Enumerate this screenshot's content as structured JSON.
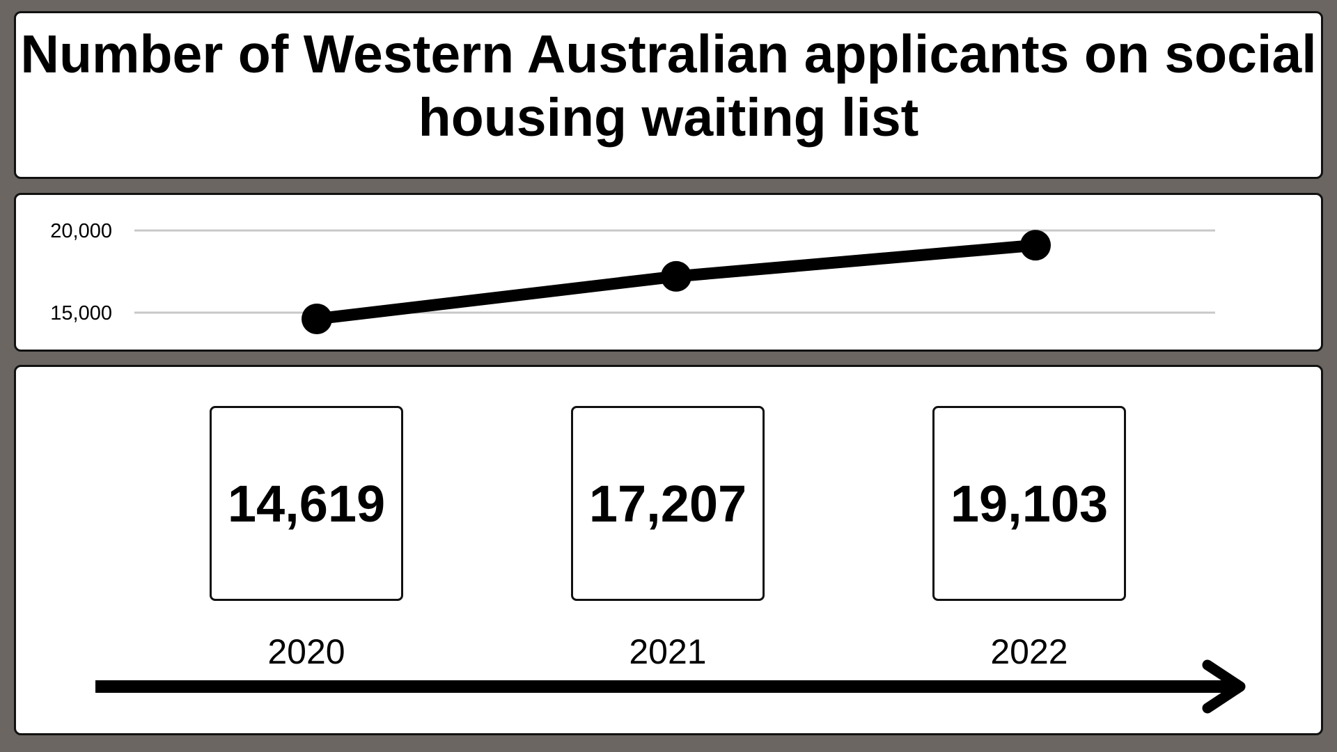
{
  "title": "Number of Western Australian applicants on social housing waiting list",
  "chart_data": {
    "type": "line",
    "title": "Number of Western Australian applicants on social housing waiting list",
    "x": [
      "2020",
      "2021",
      "2022"
    ],
    "values": [
      14619,
      17207,
      19103
    ],
    "value_labels": [
      "14,619",
      "17,207",
      "19,103"
    ],
    "yticks": [
      15000,
      20000
    ],
    "ytick_labels": [
      "15,000",
      "20,000"
    ],
    "ylim": [
      15000,
      20000
    ],
    "grid": true,
    "series_color": "#000000",
    "gridline_color": "#c8c8c8"
  },
  "colors": {
    "background": "#6b6661",
    "panel": "#ffffff",
    "border": "#111111"
  }
}
